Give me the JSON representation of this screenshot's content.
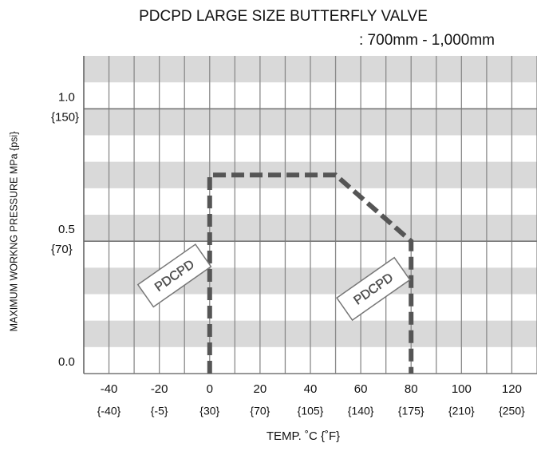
{
  "chart_data": {
    "type": "line",
    "title": "PDCPD LARGE SIZE BUTTERFLY VALVE",
    "subtitle": ": 700mm - 1,000mm",
    "x_label": "TEMP. ˚C {˚F}",
    "y_label": "MAXIMUM WORKNG PRESSURE   MPa {psi}",
    "xlim": [
      -50,
      130
    ],
    "xticks": [
      -40,
      -20,
      0,
      20,
      40,
      60,
      80,
      100,
      120
    ],
    "xtick_fahrenheit_labels": [
      "{-40}",
      "{-5}",
      "{30}",
      "{70}",
      "{105}",
      "{140}",
      "{175}",
      "{210}",
      "{250}"
    ],
    "xgrid": [
      -50,
      -40,
      -30,
      -20,
      -10,
      0,
      10,
      20,
      30,
      40,
      50,
      60,
      70,
      80,
      90,
      100,
      110,
      120,
      130
    ],
    "ylim": [
      0,
      1.2
    ],
    "yticks": [
      {
        "value": 0,
        "label": "0.0"
      },
      0.5,
      {
        "value": 1,
        "label": "1.0"
      }
    ],
    "ytick_psi_labels": [
      null,
      "{70}",
      "{150}"
    ],
    "ybands": [
      [
        1.1,
        1.2
      ],
      [
        0.9,
        1.0
      ],
      [
        0.7,
        0.8
      ],
      [
        0.5,
        0.6
      ],
      [
        0.3,
        0.4
      ],
      [
        0.1,
        0.2
      ]
    ],
    "series": [
      {
        "name": "PDCPD",
        "color": "#555555",
        "x": [
          0,
          0,
          50,
          80,
          80
        ],
        "values": [
          0,
          0.75,
          0.75,
          0.5,
          0
        ]
      }
    ],
    "annotations": [
      {
        "text": "PDCPD",
        "x": -14,
        "y": 0.37
      },
      {
        "text": "PDCPD",
        "x": 65,
        "y": 0.32
      }
    ]
  }
}
